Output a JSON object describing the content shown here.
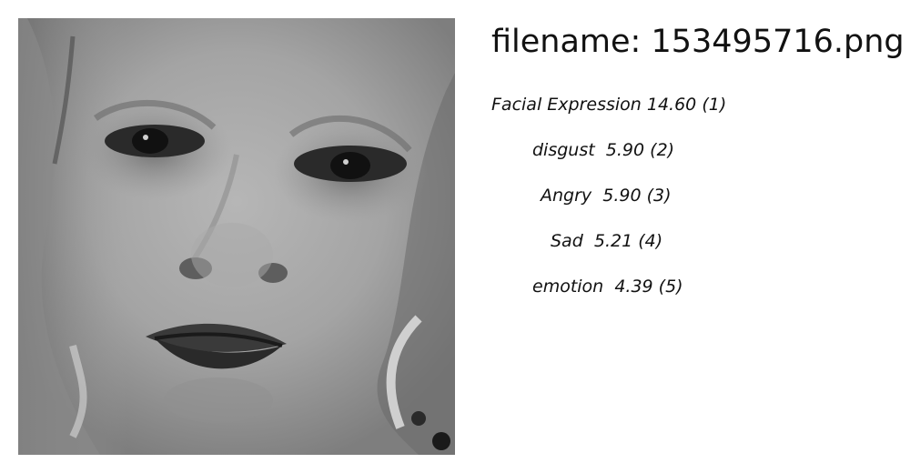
{
  "image": {
    "alt": "grayscale close-up face photo"
  },
  "header": {
    "filename_prefix": "filename: ",
    "filename": "153495716.png"
  },
  "results": [
    {
      "label": "Facial Expression",
      "score": "14.60",
      "rank": "(1)"
    },
    {
      "label": "disgust",
      "score": "5.90",
      "rank": "(2)"
    },
    {
      "label": "Angry",
      "score": "5.90",
      "rank": "(3)"
    },
    {
      "label": "Sad",
      "score": "5.21",
      "rank": "(4)"
    },
    {
      "label": "emotion",
      "score": "4.39",
      "rank": "(5)"
    }
  ]
}
